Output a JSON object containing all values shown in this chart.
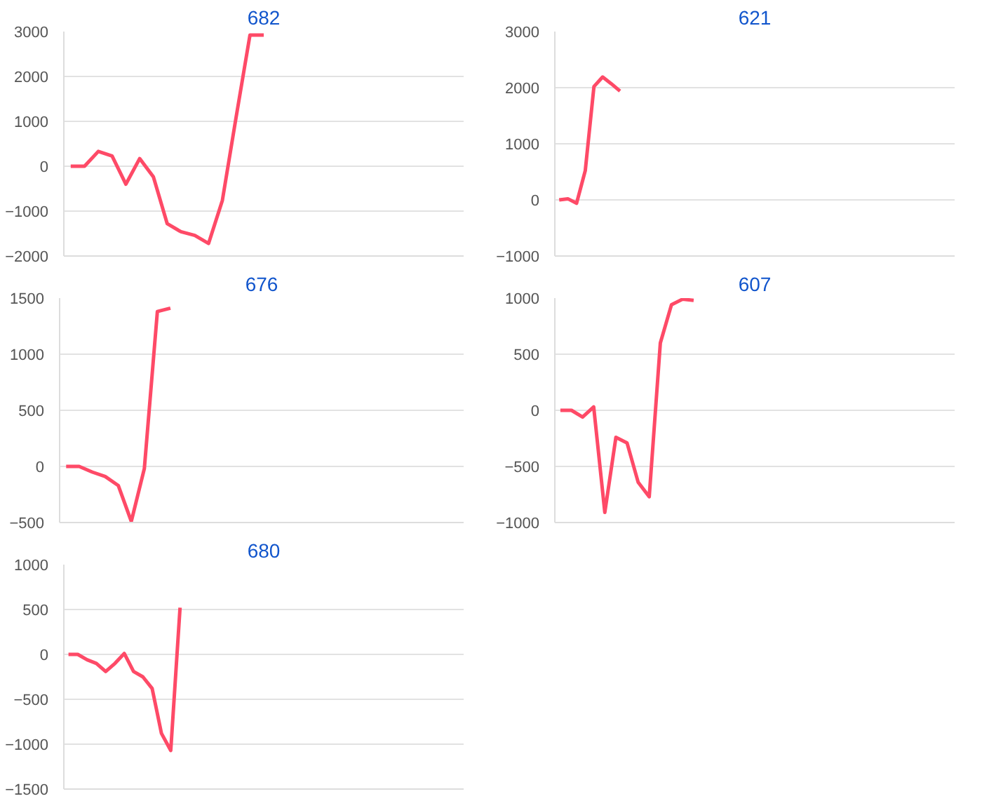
{
  "chart_data": [
    {
      "type": "line",
      "title": "682",
      "categories": [
        null,
        null,
        null,
        null,
        null,
        null,
        null,
        null,
        null,
        null,
        null,
        null,
        null,
        null,
        null,
        null,
        null,
        null,
        null,
        null,
        null,
        null,
        null,
        null,
        null,
        null,
        null,
        null,
        null
      ],
      "series": [
        {
          "color": "#fe4a67",
          "values": [
            0,
            0,
            330,
            230,
            -400,
            170,
            -240,
            -1280,
            -1460,
            -1540,
            -1720,
            -760,
            1100,
            2920,
            2920,
            null,
            null,
            null,
            null,
            null,
            null,
            null,
            null,
            null,
            null,
            null,
            null,
            null,
            null
          ]
        }
      ],
      "ylim": [
        -2000,
        3000
      ],
      "yticks": [
        -2000,
        -1000,
        0,
        1000,
        2000,
        3000
      ],
      "grid": "y",
      "tick_labels": "y",
      "marker": "none",
      "line_style": "solid"
    },
    {
      "type": "line",
      "title": "621",
      "categories": [
        null,
        null,
        null,
        null,
        null,
        null,
        null,
        null,
        null,
        null,
        null,
        null,
        null,
        null,
        null,
        null,
        null,
        null,
        null,
        null,
        null,
        null,
        null,
        null,
        null,
        null,
        null,
        null,
        null,
        null,
        null,
        null,
        null,
        null,
        null,
        null,
        null,
        null,
        null,
        null,
        null,
        null,
        null,
        null,
        null,
        null
      ],
      "series": [
        {
          "color": "#fe4a67",
          "values": [
            0,
            20,
            -60,
            520,
            2020,
            2190,
            2070,
            1940,
            null,
            null,
            null,
            null,
            null,
            null,
            null,
            null,
            null,
            null,
            null,
            null,
            null,
            null,
            null,
            null,
            null,
            null,
            null,
            null,
            null,
            null,
            null,
            null,
            null,
            null,
            null,
            null,
            null,
            null,
            null,
            null,
            null,
            null,
            null,
            null,
            null,
            null
          ]
        }
      ],
      "ylim": [
        -1000,
        3000
      ],
      "yticks": [
        -1000,
        0,
        1000,
        2000,
        3000
      ],
      "grid": "y",
      "tick_labels": "y",
      "marker": "none",
      "line_style": "solid"
    },
    {
      "type": "line",
      "title": "676",
      "categories": [
        null,
        null,
        null,
        null,
        null,
        null,
        null,
        null,
        null,
        null,
        null,
        null,
        null,
        null,
        null,
        null,
        null,
        null,
        null,
        null,
        null,
        null,
        null,
        null,
        null,
        null,
        null,
        null,
        null,
        null,
        null
      ],
      "series": [
        {
          "color": "#fe4a67",
          "values": [
            0,
            0,
            -50,
            -90,
            -170,
            -490,
            -20,
            1380,
            1410,
            null,
            null,
            null,
            null,
            null,
            null,
            null,
            null,
            null,
            null,
            null,
            null,
            null,
            null,
            null,
            null,
            null,
            null,
            null,
            null,
            null,
            null
          ]
        }
      ],
      "ylim": [
        -500,
        1500
      ],
      "yticks": [
        -500,
        0,
        500,
        1000,
        1500
      ],
      "grid": "y",
      "tick_labels": "y",
      "marker": "none",
      "line_style": "solid"
    },
    {
      "type": "line",
      "title": "607",
      "categories": [
        null,
        null,
        null,
        null,
        null,
        null,
        null,
        null,
        null,
        null,
        null,
        null,
        null,
        null,
        null,
        null,
        null,
        null,
        null,
        null,
        null,
        null,
        null,
        null,
        null,
        null,
        null,
        null,
        null,
        null,
        null,
        null,
        null,
        null,
        null,
        null
      ],
      "series": [
        {
          "color": "#fe4a67",
          "values": [
            0,
            0,
            -60,
            30,
            -910,
            -240,
            -290,
            -640,
            -770,
            600,
            940,
            990,
            980,
            null,
            null,
            null,
            null,
            null,
            null,
            null,
            null,
            null,
            null,
            null,
            null,
            null,
            null,
            null,
            null,
            null,
            null,
            null,
            null,
            null,
            null,
            null
          ]
        }
      ],
      "ylim": [
        -1000,
        1000
      ],
      "yticks": [
        -1000,
        -500,
        0,
        500,
        1000
      ],
      "grid": "y",
      "tick_labels": "y",
      "marker": "none",
      "line_style": "solid"
    },
    {
      "type": "line",
      "title": "680",
      "categories": [
        null,
        null,
        null,
        null,
        null,
        null,
        null,
        null,
        null,
        null,
        null,
        null,
        null,
        null,
        null,
        null,
        null,
        null,
        null,
        null,
        null,
        null,
        null,
        null,
        null,
        null,
        null,
        null,
        null,
        null,
        null,
        null,
        null,
        null,
        null,
        null,
        null,
        null,
        null,
        null,
        null,
        null,
        null
      ],
      "series": [
        {
          "color": "#fe4a67",
          "values": [
            0,
            0,
            -60,
            -100,
            -190,
            -100,
            10,
            -190,
            -250,
            -380,
            -880,
            -1070,
            520,
            null,
            null,
            null,
            null,
            null,
            null,
            null,
            null,
            null,
            null,
            null,
            null,
            null,
            null,
            null,
            null,
            null,
            null,
            null,
            null,
            null,
            null,
            null,
            null,
            null,
            null,
            null,
            null,
            null,
            null
          ]
        }
      ],
      "ylim": [
        -1500,
        1000
      ],
      "yticks": [
        -1500,
        -1000,
        -500,
        0,
        500,
        1000
      ],
      "grid": "y",
      "tick_labels": "y",
      "marker": "none",
      "line_style": "solid"
    }
  ]
}
